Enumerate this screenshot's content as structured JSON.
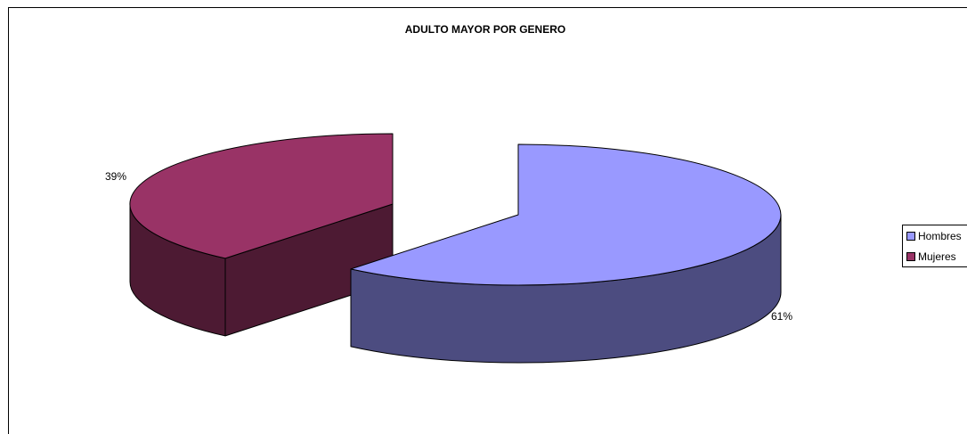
{
  "chart_data": {
    "type": "pie",
    "title": "ADULTO MAYOR POR GENERO",
    "series": [
      {
        "name": "Hombres",
        "value": 61,
        "label": "61%",
        "color": "#9999ff",
        "side_color": "#4c4c80"
      },
      {
        "name": "Mujeres",
        "value": 39,
        "label": "39%",
        "color": "#993366",
        "side_color": "#4d1a33"
      }
    ],
    "legend": {
      "placement": "right",
      "entries": [
        "Hombres",
        "Mujeres"
      ]
    },
    "exploded": true,
    "three_d": true
  }
}
